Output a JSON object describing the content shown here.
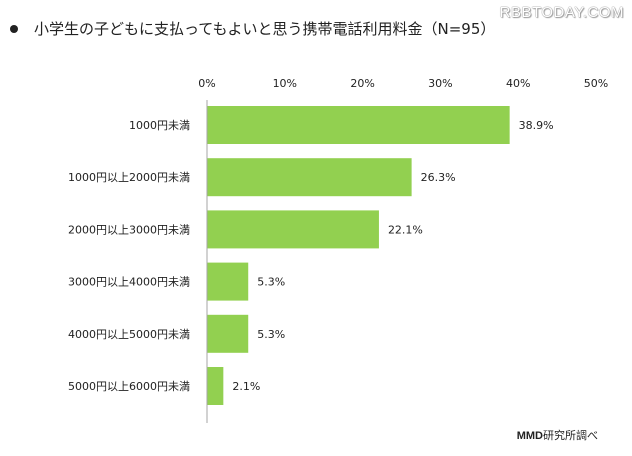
{
  "title": "小学生の子どもに支払ってもよいと思う携帯電話利用料金（N=95）",
  "watermark": "RBBTODAY.COM",
  "source": {
    "brand": "MMD",
    "rest": "研究所調べ"
  },
  "colors": {
    "bar": "#92d050",
    "axis": "#a6a6a6",
    "text": "#222222"
  },
  "chart_data": {
    "type": "bar",
    "orientation": "horizontal",
    "title": "小学生の子どもに支払ってもよいと思う携帯電話利用料金（N=95）",
    "categories": [
      "1000円未満",
      "1000円以上2000円未満",
      "2000円以上3000円未満",
      "3000円以上4000円未満",
      "4000円以上5000円未満",
      "5000円以上6000円未満"
    ],
    "values": [
      38.9,
      26.3,
      22.1,
      5.3,
      5.3,
      2.1
    ],
    "value_labels": [
      "38.9%",
      "26.3%",
      "22.1%",
      "5.3%",
      "5.3%",
      "2.1%"
    ],
    "xlim": [
      0,
      50
    ],
    "xticks": [
      0,
      10,
      20,
      30,
      40,
      50
    ],
    "xtick_labels": [
      "0%",
      "10%",
      "20%",
      "30%",
      "40%",
      "50%"
    ],
    "tick_position": "top",
    "grid": false,
    "legend": "none"
  }
}
